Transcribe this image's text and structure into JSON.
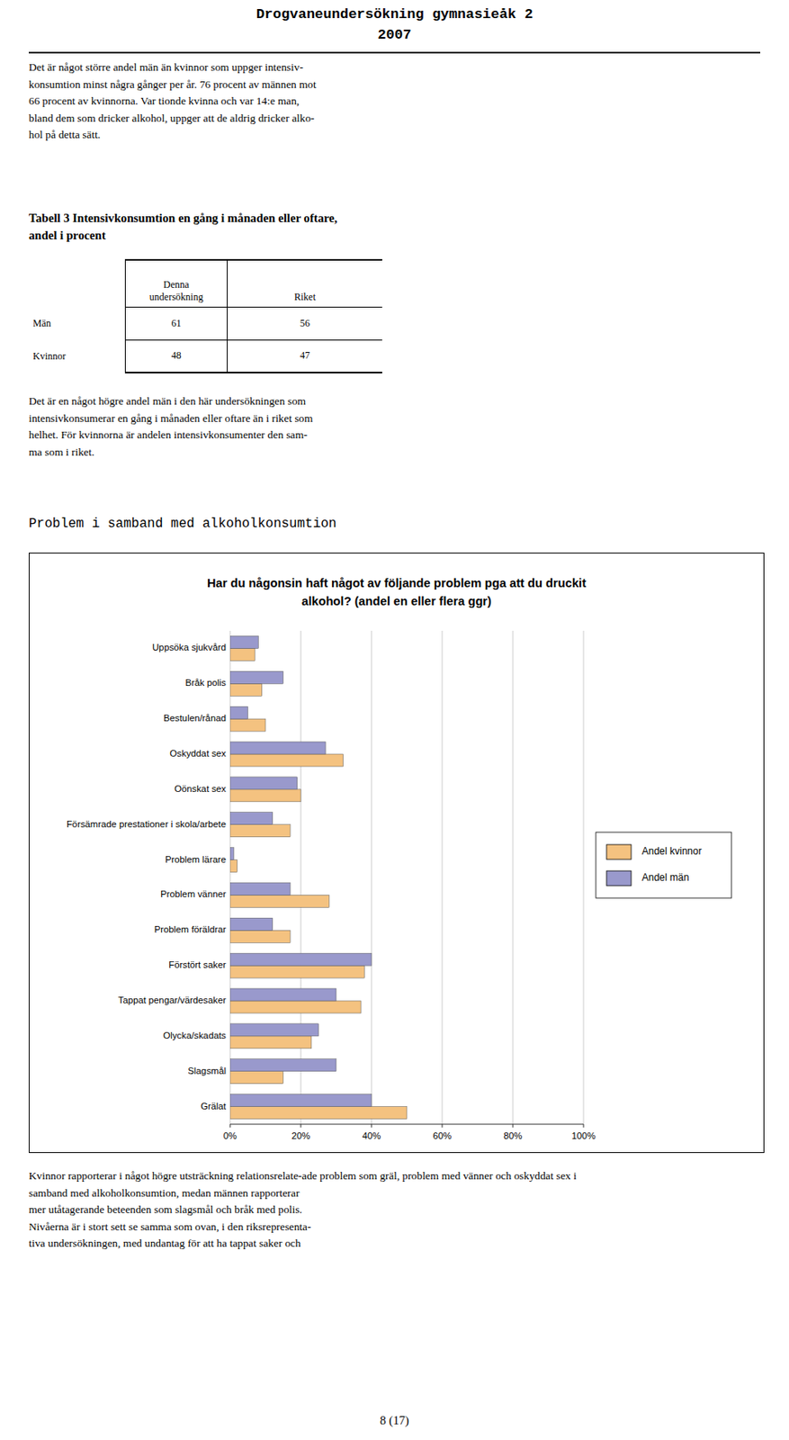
{
  "page": {
    "title_line1": "Drogvaneundersökning gymnasieåk 2",
    "title_line2": "2007",
    "body_text1": "Det är något större andel män än kvinnor som uppger intensiv-\nkonsumtion minst några gånger per år. 76 procent av männen mot\n66 procent av kvinnorna. Var tionde kvinna och var 14:e man,\nbland dem som dricker alkohol, uppger att de aldrig dricker alko-\nhol på detta sätt.",
    "body_text2": "Det är en något högre andel män i den här undersökningen som\nintensivkonsumerar en gång i månaden eller oftare än i riket som\nhelhet. För kvinnorna är andelen intensivkonsumenter den sam-\nma som i riket.",
    "section_title": "Problem i samband med alkoholkonsumtion",
    "body_text3": "Kvinnor rapporterar i något högre utsträckning relationsrelate-\rade problem som gräl, problem med vänner och oskyddat sex i\nsamband med alkoholkonsumtion, medan männen rapporterar\nmer utåtagerande beteenden som slagsmål och bråk med polis.\nNivåerna är i stort sett se samma som ovan, i den riksrepresenta-\ntiva undersökningen, med undantag för att ha tappat saker och",
    "footer": "8 (17)"
  },
  "table": {
    "title": "Tabell 3 Intensivkonsumtion en gång i månaden eller oftare,\nandel i procent",
    "columns": [
      "Denna\nundersökning",
      "Riket"
    ],
    "rows": [
      {
        "label": "Män",
        "values": [
          61,
          56
        ]
      },
      {
        "label": "Kvinnor",
        "values": [
          48,
          47
        ]
      }
    ]
  },
  "chart_data": {
    "type": "bar",
    "orientation": "horizontal",
    "title": "Har du någonsin haft något av följande problem pga att du druckit\nalkohol? (andel en eller flera ggr)",
    "categories": [
      "Uppsöka sjukvård",
      "Bråk polis",
      "Bestulen/rånad",
      "Oskyddat sex",
      "Oönskat sex",
      "Försämrade prestationer i skola/arbete",
      "Problem lärare",
      "Problem vänner",
      "Problem föräldrar",
      "Förstört saker",
      "Tappat pengar/värdesaker",
      "Olycka/skadats",
      "Slagsmål",
      "Grälat"
    ],
    "series": [
      {
        "name": "Andel kvinnor",
        "color": "#F4C280",
        "values": [
          7,
          9,
          10,
          32,
          20,
          17,
          2,
          28,
          17,
          38,
          37,
          23,
          15,
          50
        ]
      },
      {
        "name": "Andel män",
        "color": "#9999CC",
        "values": [
          8,
          15,
          5,
          27,
          19,
          12,
          1,
          17,
          12,
          40,
          30,
          25,
          30,
          40
        ]
      }
    ],
    "xlim": [
      0,
      100
    ],
    "xticks": [
      {
        "value": 0,
        "label": "0%"
      },
      {
        "value": 20,
        "label": "20%"
      },
      {
        "value": 40,
        "label": "40%"
      },
      {
        "value": 60,
        "label": "60%"
      },
      {
        "value": 80,
        "label": "80%"
      },
      {
        "value": 100,
        "label": "100%"
      }
    ],
    "grid": true,
    "legend": "right"
  }
}
